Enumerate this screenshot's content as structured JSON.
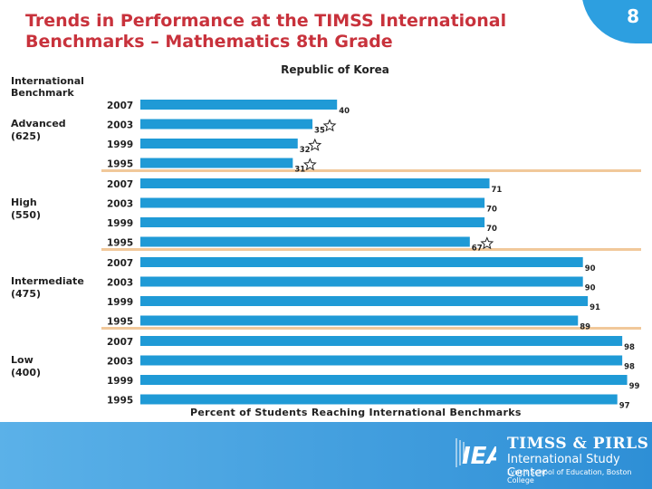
{
  "header": {
    "title_line1": "Trends in Performance at the TIMSS International",
    "title_line2": "Benchmarks – Mathematics 8th Grade",
    "page_number": "8",
    "country": "Republic of Korea",
    "row_heading_line1": "International",
    "row_heading_line2": "Benchmark"
  },
  "footer": {
    "logo_text": "IEA",
    "line1": "TIMSS & PIRLS",
    "line2": "International Study Center",
    "line3": "Lynch School of Education, Boston College"
  },
  "colors": {
    "bar": "#1f9ad6",
    "title": "#c8323c",
    "accent": "#2d9fe0",
    "separator": "#f1c89a"
  },
  "chart_data": {
    "type": "bar",
    "orientation": "horizontal",
    "title": "Republic of Korea",
    "xlabel": "Percent of Students Reaching International Benchmarks",
    "xlim": [
      0,
      100
    ],
    "legend": "none",
    "groups": [
      {
        "label_line1": "Advanced",
        "label_line2": "(625)",
        "bars": [
          {
            "year": "2007",
            "value": 40,
            "star": false
          },
          {
            "year": "2003",
            "value": 35,
            "star": true
          },
          {
            "year": "1999",
            "value": 32,
            "star": true
          },
          {
            "year": "1995",
            "value": 31,
            "star": true
          }
        ]
      },
      {
        "label_line1": "High",
        "label_line2": "(550)",
        "bars": [
          {
            "year": "2007",
            "value": 71,
            "star": false
          },
          {
            "year": "2003",
            "value": 70,
            "star": false
          },
          {
            "year": "1999",
            "value": 70,
            "star": false
          },
          {
            "year": "1995",
            "value": 67,
            "star": true
          }
        ]
      },
      {
        "label_line1": "Intermediate",
        "label_line2": "(475)",
        "bars": [
          {
            "year": "2007",
            "value": 90,
            "star": false
          },
          {
            "year": "2003",
            "value": 90,
            "star": false
          },
          {
            "year": "1999",
            "value": 91,
            "star": false
          },
          {
            "year": "1995",
            "value": 89,
            "star": false
          }
        ]
      },
      {
        "label_line1": "Low",
        "label_line2": "(400)",
        "bars": [
          {
            "year": "2007",
            "value": 98,
            "star": false
          },
          {
            "year": "2003",
            "value": 98,
            "star": false
          },
          {
            "year": "1999",
            "value": 99,
            "star": false
          },
          {
            "year": "1995",
            "value": 97,
            "star": false
          }
        ]
      }
    ]
  }
}
